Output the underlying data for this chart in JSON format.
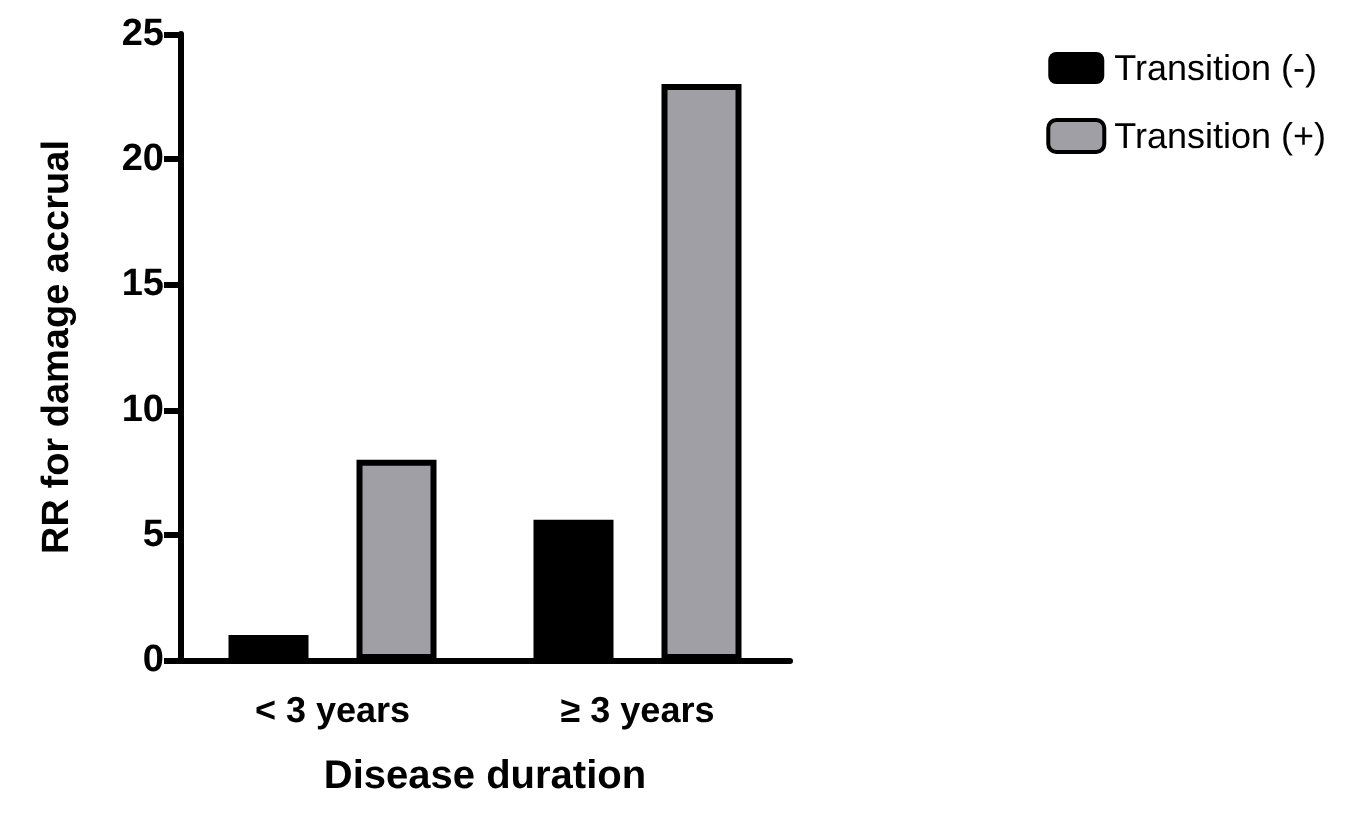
{
  "chart_data": {
    "type": "bar",
    "xlabel": "Disease duration",
    "ylabel": "RR for damage accrual",
    "categories": [
      "< 3 years",
      "≥ 3 years"
    ],
    "series": [
      {
        "name": "Transition (-)",
        "color": "#000000",
        "values": [
          1.0,
          5.6
        ]
      },
      {
        "name": "Transition (+)",
        "color": "#a09fa5",
        "values": [
          8.0,
          23.0
        ]
      }
    ],
    "ylim": [
      0,
      25
    ],
    "yticks": [
      0,
      5,
      10,
      15,
      20,
      25
    ],
    "grid": false,
    "legend": "top right"
  }
}
